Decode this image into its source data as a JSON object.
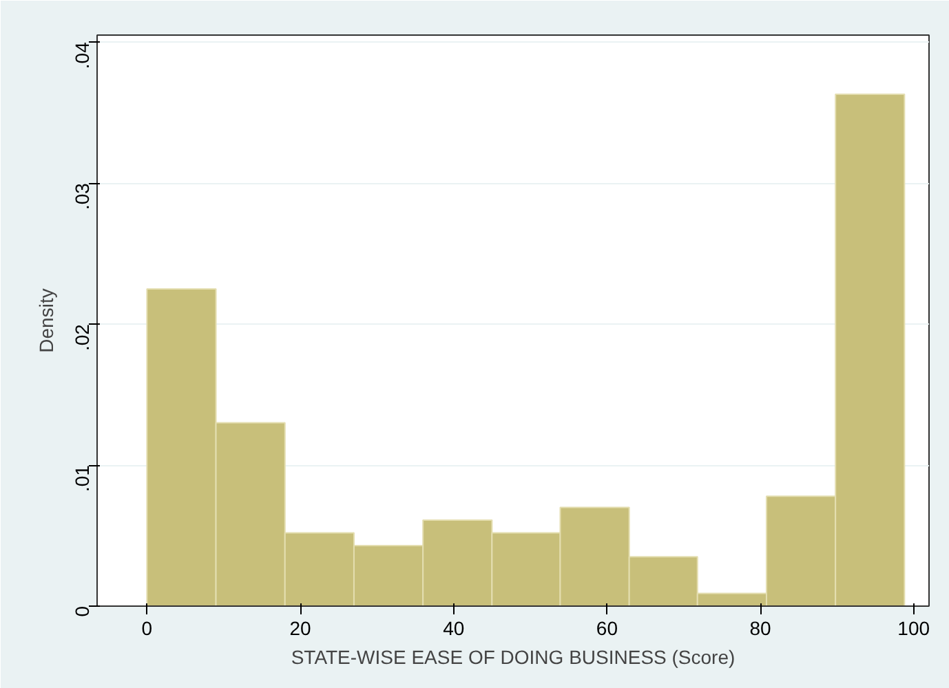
{
  "chart_data": {
    "type": "histogram",
    "xlabel": "STATE-WISE EASE OF DOING BUSINESS (Score)",
    "ylabel": "Density",
    "bins": [
      0,
      9,
      18,
      27,
      36,
      45,
      53.9,
      62.9,
      71.8,
      80.8,
      89.8,
      98.8
    ],
    "values": [
      0.0225,
      0.013,
      0.0052,
      0.0043,
      0.0061,
      0.0052,
      0.007,
      0.0035,
      0.0009,
      0.0078,
      0.0363
    ],
    "color": "#c8bf7a",
    "xlim": [
      -6.5,
      102
    ],
    "ylim": [
      0,
      0.0405
    ],
    "xticks": [
      0,
      20,
      40,
      60,
      80,
      100
    ],
    "yticks": [
      {
        "value": 0,
        "label": "0"
      },
      {
        "value": 0.01,
        "label": ".01"
      },
      {
        "value": 0.02,
        "label": ".02"
      },
      {
        "value": 0.03,
        "label": ".03"
      },
      {
        "value": 0.04,
        "label": ".04"
      }
    ],
    "grid": "y"
  }
}
